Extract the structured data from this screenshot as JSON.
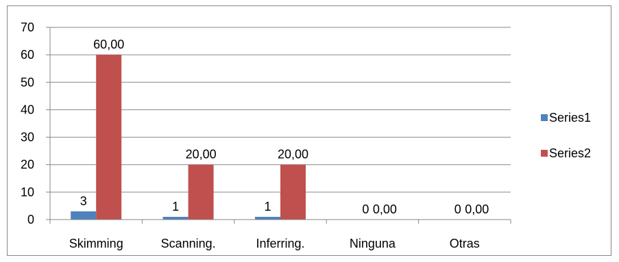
{
  "chart_data": {
    "type": "bar",
    "categories": [
      "Skimming",
      "Scanning.",
      "Inferring.",
      "Ninguna",
      "Otras"
    ],
    "series": [
      {
        "name": "Series1",
        "values": [
          3,
          1,
          1,
          0,
          0
        ],
        "labels": [
          "3",
          "1",
          "1",
          "0",
          "0"
        ],
        "color": "#4f81bd"
      },
      {
        "name": "Series2",
        "values": [
          60,
          20,
          20,
          0,
          0
        ],
        "labels": [
          "60,00",
          "20,00",
          "20,00",
          "0,00",
          "0,00"
        ],
        "color": "#c0504d"
      }
    ],
    "yticks": [
      "0",
      "10",
      "20",
      "30",
      "40",
      "50",
      "60",
      "70"
    ],
    "ylim": [
      0,
      70
    ],
    "grid": true,
    "legend_position": "right",
    "gridline_color": "#868686"
  }
}
